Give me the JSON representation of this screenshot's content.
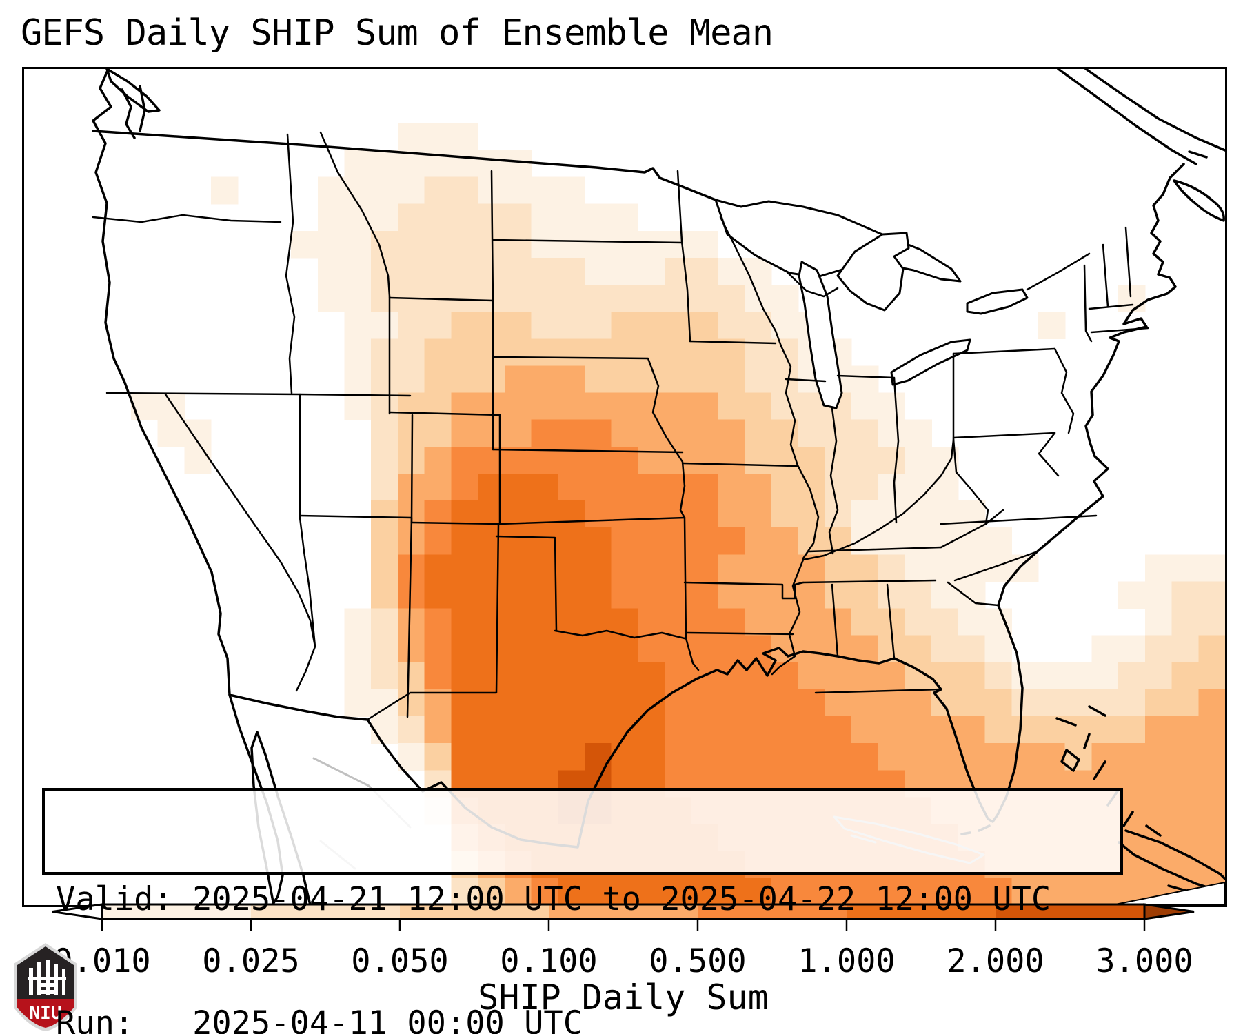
{
  "title": "GEFS Daily SHIP Sum of Ensemble Mean",
  "info_box": {
    "valid_line": "Valid: 2025-04-21 12:00 UTC to 2025-04-22 12:00 UTC",
    "run_line": "Run:   2025-04-11 00:00 UTC"
  },
  "colorbar": {
    "label": "SHIP Daily Sum",
    "ticks": [
      "0.010",
      "0.025",
      "0.050",
      "0.100",
      "0.500",
      "1.000",
      "2.000",
      "3.000"
    ],
    "segment_colors": [
      "#fdf2e4",
      "#fce3c6",
      "#fbd0a1",
      "#fbab69",
      "#f8883c",
      "#ee711a",
      "#d45508"
    ],
    "under_color": "#ffffff",
    "over_color": "#9e3d04",
    "outline_color": "#000000"
  },
  "chart_data": {
    "type": "heatmap",
    "title": "GEFS Daily SHIP Sum of Ensemble Mean",
    "colorbar_label": "SHIP Daily Sum",
    "scale": "discrete, arrow-extended both ends",
    "bin_edges": [
      0.01,
      0.025,
      0.05,
      0.1,
      0.5,
      1.0,
      2.0,
      3.0
    ],
    "bins": [
      {
        "range": "< 0.010",
        "color": "#ffffff"
      },
      {
        "range": "0.010-0.025",
        "color": "#fdf2e4"
      },
      {
        "range": "0.025-0.050",
        "color": "#fce3c6"
      },
      {
        "range": "0.050-0.100",
        "color": "#fbd0a1"
      },
      {
        "range": "0.100-0.500",
        "color": "#fbab69"
      },
      {
        "range": "0.500-1.000",
        "color": "#f8883c"
      },
      {
        "range": "1.000-2.000",
        "color": "#ee711a"
      },
      {
        "range": "2.000-3.000",
        "color": "#d45508"
      },
      {
        "range": "> 3.000",
        "color": "#9e3d04"
      }
    ],
    "maximum_region": "central/south Texas and adjacent Gulf of Mexico (2-3+ range)",
    "valid": "2025-04-21 12:00 UTC to 2025-04-22 12:00 UTC",
    "run": "2025-04-11 00:00 UTC"
  },
  "map": {
    "region": "CONUS",
    "heat_grid": {
      "cols": 45,
      "rows": 31,
      "legend": "digit 0 = <0.01 (blank); digits 1-7 = colorbar bins 0.010-0.025 ... 2.000-3.000",
      "cells": [
        "00000 00000 00000 00000 00000 00000 00000 00000 00000",
        "00000 00000 00000 00000 00000 00000 00000 00000 00000",
        "00000 00000 00001 11000 00000 00000 00000 00000 00000",
        "00000 00000 00111 11110 00000 00000 00000 00000 00000",
        "00000 00100 01111 22111 10000 00000 00000 00000 00000",
        "00000 00000 01112 22221 11100 00000 00000 00000 00000",
        "00000 00000 11122 22221 11111 10000 00000 00000 00000",
        "00000 00000 01122 22222 21112 21100 00000 00000 00000",
        "00000 00000 01122 22222 22222 22110 00000 00000 01000",
        "00000 00000 00112 23332 22333 32211 00000 00010 00000",
        "00000 00000 00122 33333 33333 33221 10000 00000 00000",
        "00000 00000 00122 33344 43333 33221 11000 00000 00000",
        "00001 10000 00123 34444 44444 43322 21100 00000 00000",
        "00000 11000 00023 34445 55444 44332 22110 00000 00000",
        "00000 01000 00023 45555 55544 44333 22211 00000 00000",
        "00000 00000 00024 45666 55555 54433 22111 00000 00000",
        "00000 00000 00034 56666 65555 54433 21111 10000 00000",
        "00000 00000 00034 56666 66555 55443 31111 11000 00000",
        "00000 00000 00035 66666 66555 54444 33211 11100 00111",
        "00000 00000 00035 66666 66555 54444 33221 10000 01122",
        "00000 00000 00124 56666 66655 55444 43322 11000 00122",
        "00000 00000 00124 56666 66655 55544 44332 21000 11223",
        "00000 00000 00123 56666 66665 55554 44433 32111 12233",
        "00000 00000 00113 46666 66665 55555 44443 33222 22334",
        "00000 00000 00012 46666 66665 55555 54444 43333 33444",
        "00000 00000 00001 36666 67665 55555 55444 44443 44444",
        "00000 00000 00000 26666 77665 55555 55544 44444 44444",
        "00000 00000 00000 15666 77666 55555 55554 44444 44444",
        "00000 00000 00000 04566 66666 65555 55555 44444 44444",
        "00000 00000 00000 03456 66666 66555 55555 54444 44444",
        "00000 00000 00000 02345 66666 66655 55555 55444 44444"
      ]
    },
    "line_colors": {
      "coast_states": "#000000",
      "foreign_admin": "#c0c0c0"
    }
  },
  "logo": {
    "text": "NIU",
    "shield_dark": "#262223",
    "shield_red": "#b6121b",
    "shield_border": "#d8d8d8"
  }
}
